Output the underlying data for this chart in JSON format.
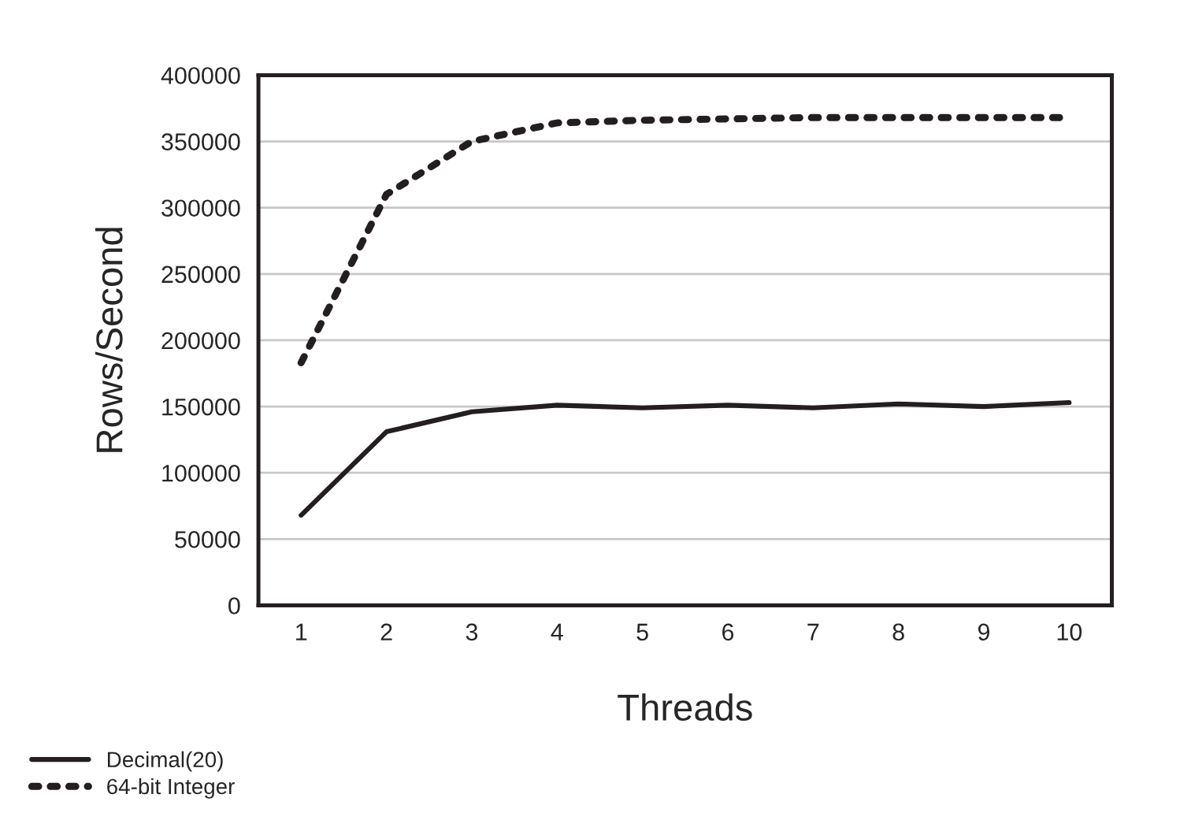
{
  "chart_data": {
    "type": "line",
    "xlabel": "Threads",
    "ylabel": "Rows/Second",
    "categories": [
      "1",
      "2",
      "3",
      "4",
      "5",
      "6",
      "7",
      "8",
      "9",
      "10"
    ],
    "series": [
      {
        "name": "Decimal(20)",
        "color": "#231f20",
        "line_style": "solid",
        "values": [
          68000,
          131000,
          146000,
          151000,
          149000,
          151000,
          149000,
          152000,
          150000,
          153000
        ]
      },
      {
        "name": "64-bit Integer",
        "color": "#231f20",
        "line_style": "dotted",
        "values": [
          183000,
          310000,
          350000,
          364000,
          366000,
          367000,
          368000,
          368000,
          368000,
          368000
        ]
      }
    ],
    "ylim": [
      0,
      400000
    ],
    "yticks": [
      0,
      50000,
      100000,
      150000,
      200000,
      250000,
      300000,
      350000,
      400000
    ],
    "grid": "y",
    "legend": "bottom left",
    "marker": "none"
  }
}
